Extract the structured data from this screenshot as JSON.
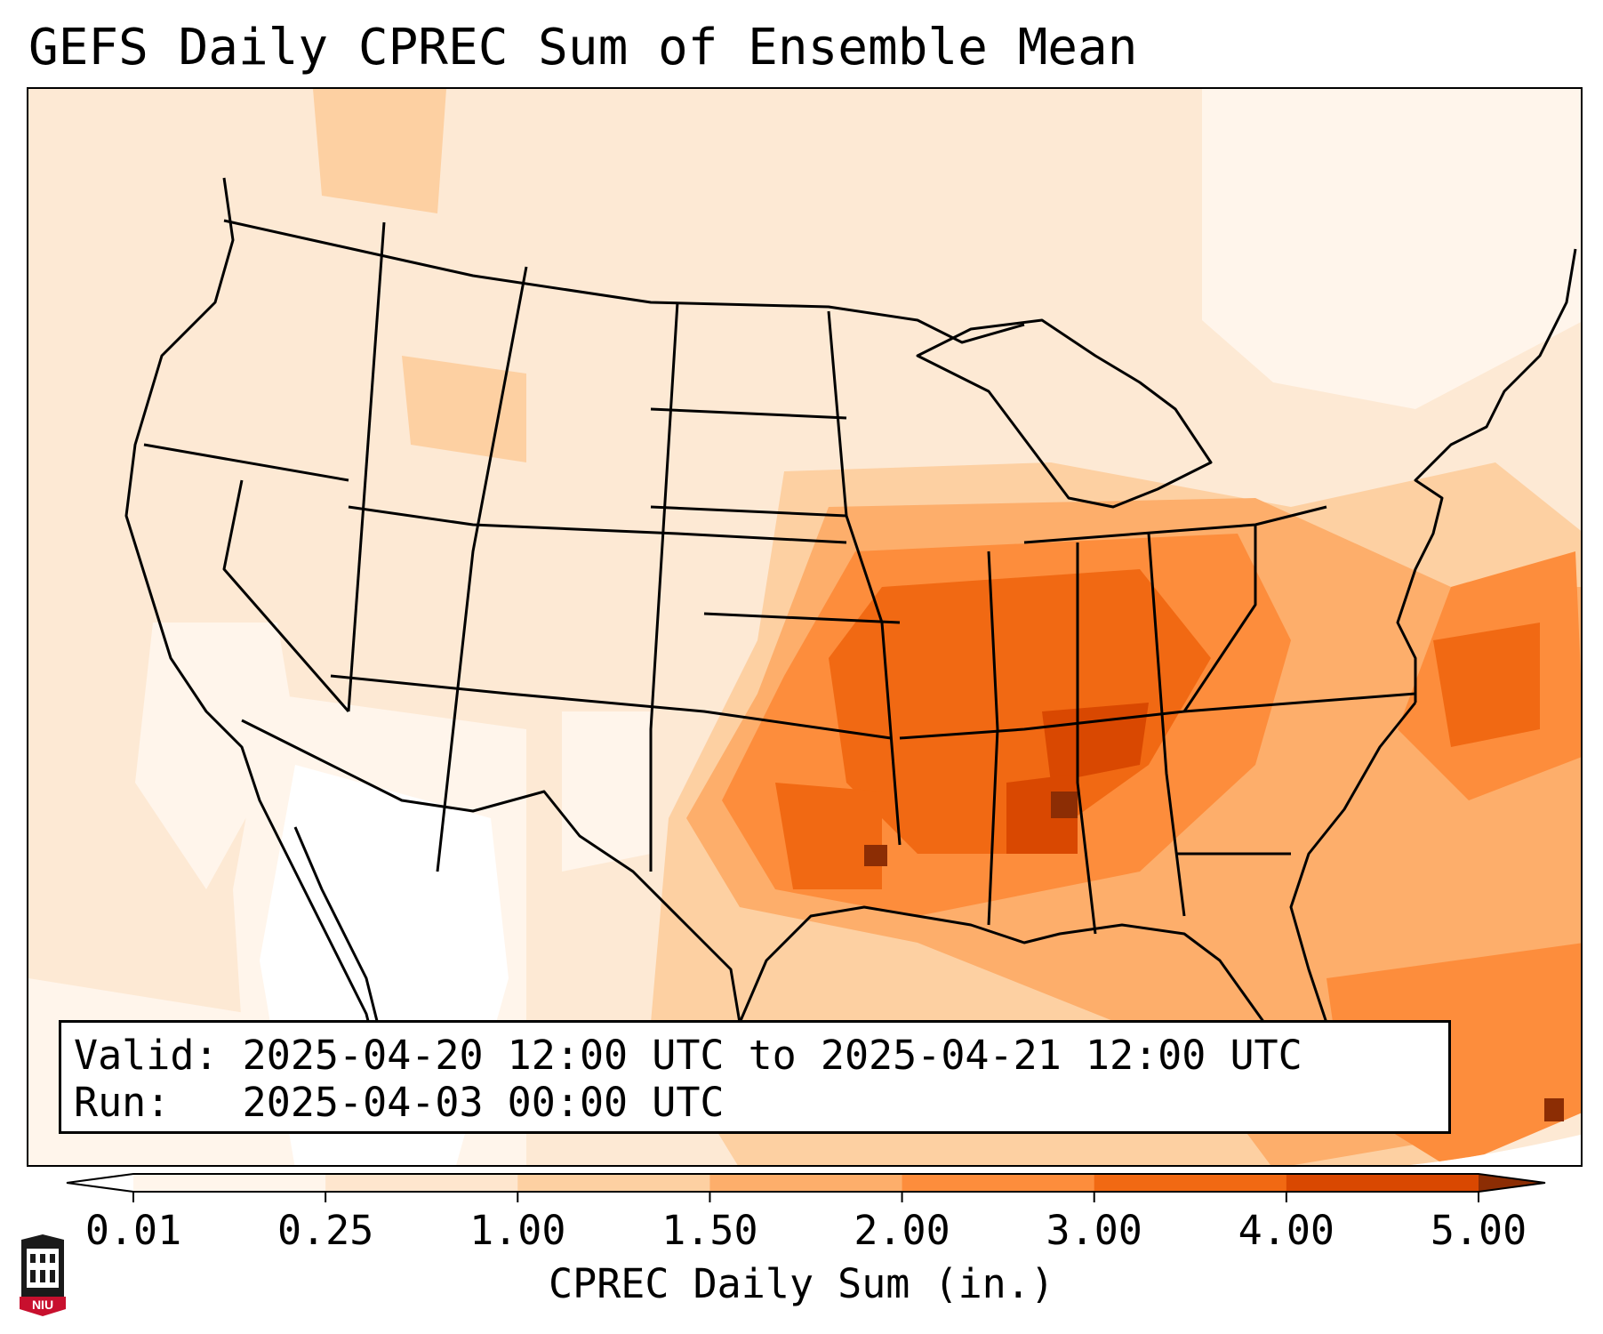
{
  "title": "GEFS Daily CPREC Sum of Ensemble Mean",
  "info": {
    "valid_label": "Valid:",
    "valid_value": "2025-04-20 12:00 UTC to 2025-04-21 12:00 UTC",
    "run_label": "Run:",
    "run_value": "2025-04-03 00:00 UTC"
  },
  "colorbar": {
    "label": "CPREC Daily Sum (in.)",
    "ticks": [
      "0.01",
      "0.25",
      "1.00",
      "1.50",
      "2.00",
      "3.00",
      "4.00",
      "5.00"
    ],
    "colors": [
      "#fff5eb",
      "#fee6ce",
      "#fdd0a2",
      "#fdae6b",
      "#fd8d3c",
      "#f16913",
      "#d94801",
      "#8c2d04"
    ]
  },
  "map": {
    "projection": "Lambert conformal, CONUS",
    "features": [
      "coastlines",
      "country borders",
      "US state borders"
    ]
  },
  "logo": {
    "text": "NIU"
  }
}
